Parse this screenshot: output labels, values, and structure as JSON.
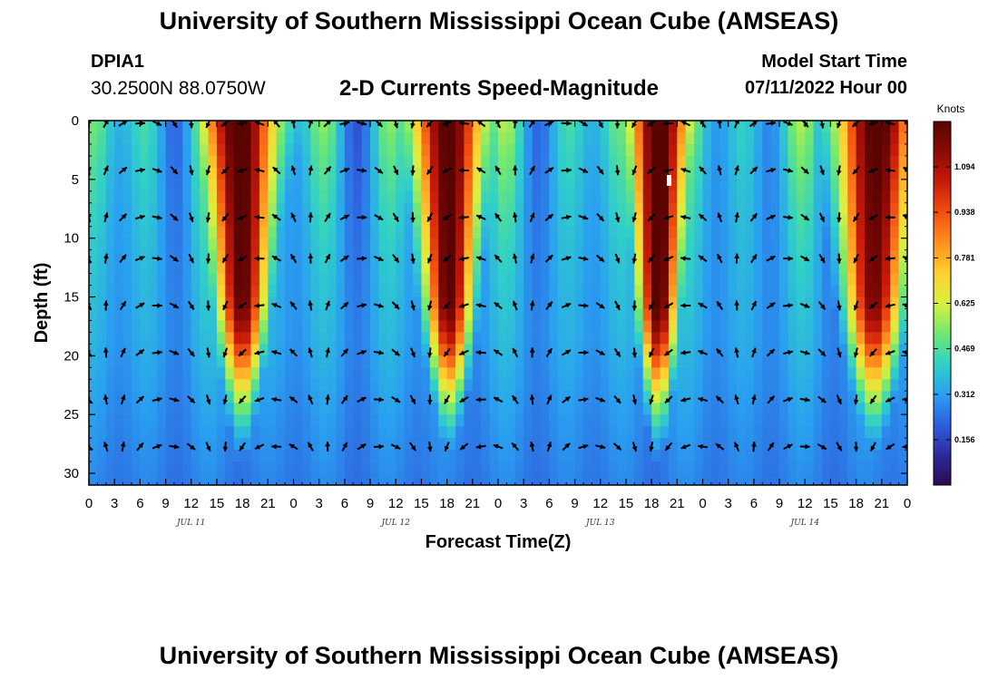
{
  "header": {
    "title": "University of Southern Mississippi Ocean Cube (AMSEAS)",
    "station_id": "DPIA1",
    "station_location": "30.2500N  88.0750W",
    "subtitle": "2-D Currents Speed-Magnitude",
    "model_start_label": "Model Start Time",
    "model_start_value": "07/11/2022 Hour 00"
  },
  "footer": {
    "title": "University of Southern Mississippi Ocean Cube (AMSEAS)"
  },
  "chart_data": {
    "type": "heatmap",
    "title": "2-D Currents Speed-Magnitude",
    "xlabel": "Forecast Time(Z)",
    "ylabel": "Depth (ft)",
    "x_range_hours": [
      0,
      96
    ],
    "y_range_ft": [
      0,
      31
    ],
    "x_tick_labels": [
      "0",
      "3",
      "6",
      "9",
      "12",
      "15",
      "18",
      "21",
      "0",
      "3",
      "6",
      "9",
      "12",
      "15",
      "18",
      "21",
      "0",
      "3",
      "6",
      "9",
      "12",
      "15",
      "18",
      "21",
      "0",
      "3",
      "6",
      "9",
      "12",
      "15",
      "18",
      "21",
      "0"
    ],
    "y_ticks": [
      0,
      5,
      10,
      15,
      20,
      25,
      30
    ],
    "y_tick_labels": [
      "0",
      "5",
      "10",
      "15",
      "20",
      "25",
      "30"
    ],
    "day_labels": [
      {
        "label": "JUL 11",
        "hour": 12
      },
      {
        "label": "JUL 12",
        "hour": 36
      },
      {
        "label": "JUL 13",
        "hour": 60
      },
      {
        "label": "JUL 14",
        "hour": 84
      }
    ],
    "colorbar": {
      "unit": "Knots",
      "range": [
        0,
        1.25
      ],
      "ticks": [
        "0.156",
        "0.312",
        "0.469",
        "0.625",
        "0.781",
        "0.938",
        "1.094"
      ],
      "colors": [
        "#2a0a50",
        "#2d2a9e",
        "#2f5fe0",
        "#2aa0f0",
        "#30d0c8",
        "#70e870",
        "#d8f040",
        "#ffd030",
        "#ff9020",
        "#f05010",
        "#c81a0a",
        "#8a0a04",
        "#5a0402"
      ]
    },
    "strong_current_bands_hours": [
      {
        "start": 14.5,
        "end": 21.5,
        "peak_knots": 1.12
      },
      {
        "start": 39,
        "end": 45.5,
        "peak_knots": 1.14
      },
      {
        "start": 64,
        "end": 69.5,
        "peak_knots": 1.18
      },
      {
        "start": 88,
        "end": 96,
        "peak_knots": 1.05
      }
    ],
    "arrow_depths_ft": [
      0,
      4,
      8,
      11.5,
      15.5,
      19.5,
      23.5,
      27.5
    ],
    "arrow_time_step_hours": 2
  }
}
